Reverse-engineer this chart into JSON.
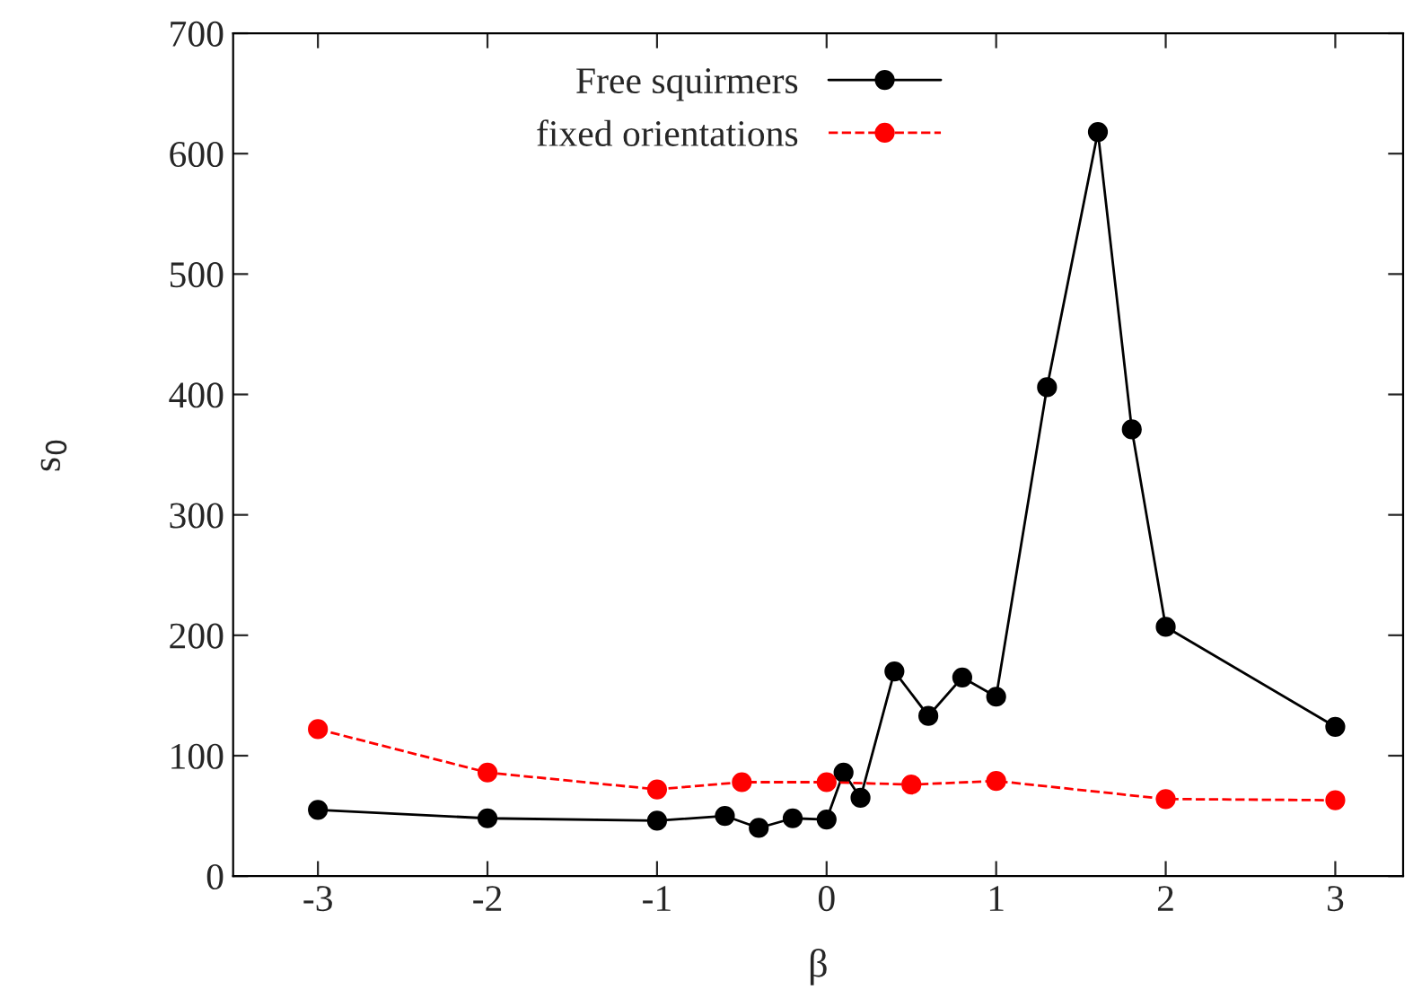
{
  "chart_data": {
    "type": "line",
    "xlabel": "β",
    "ylabel": "s$_{0}$",
    "xlim": [
      -3.5,
      3.4
    ],
    "xticks": [
      -3,
      -2,
      -1,
      0,
      1,
      2,
      3
    ],
    "ylim": [
      0,
      700
    ],
    "yticks": [
      0,
      100,
      200,
      300,
      400,
      500,
      600,
      700
    ],
    "grid": false,
    "legend": "top",
    "marker": "circle",
    "series": [
      {
        "name": "Free squirmers",
        "color": "#000000",
        "line_style": "solid",
        "x": [
          -3,
          -2,
          -1,
          -0.6,
          -0.4,
          -0.2,
          0,
          0.1,
          0.2,
          0.4,
          0.6,
          0.8,
          1,
          1.3,
          1.6,
          1.8,
          2,
          3
        ],
        "values": [
          55,
          48,
          46,
          50,
          40,
          48,
          47,
          86,
          65,
          170,
          133,
          165,
          149,
          406,
          618,
          371,
          207,
          124
        ]
      },
      {
        "name": "fixed orientations",
        "color": "#ff0000",
        "line_style": "dashed",
        "x": [
          -3,
          -2,
          -1,
          -0.5,
          0,
          0.5,
          1,
          2,
          3
        ],
        "values": [
          122,
          86,
          72,
          78,
          78,
          76,
          79,
          64,
          63
        ]
      }
    ]
  }
}
